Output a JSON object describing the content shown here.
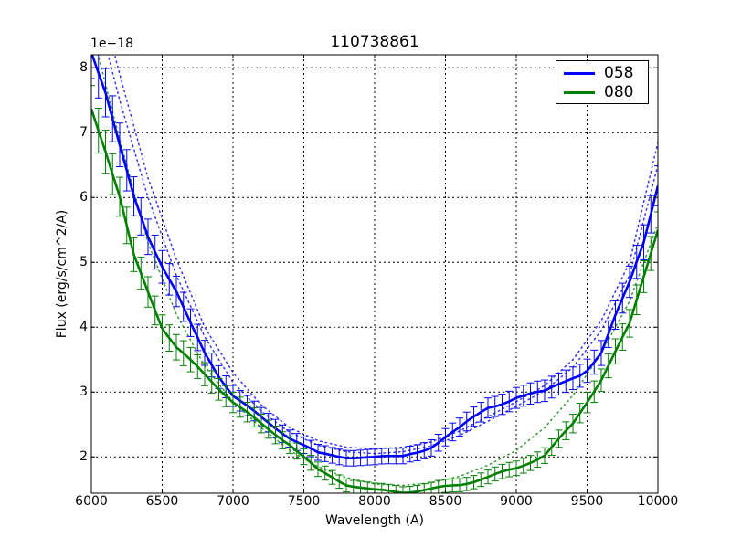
{
  "chart_data": {
    "type": "line",
    "title": "110738861",
    "xlabel": "Wavelength (A)",
    "ylabel": "Flux (erg/s/cm^2/A)",
    "y_offset_label": "1e−18",
    "xlim": [
      6000,
      10000
    ],
    "ylim": [
      1.44,
      8.2
    ],
    "xticks": [
      "6000",
      "6500",
      "7000",
      "7500",
      "8000",
      "8500",
      "9000",
      "9500",
      "10000"
    ],
    "yticks": [
      "2",
      "3",
      "4",
      "5",
      "6",
      "7",
      "8"
    ],
    "grid": true,
    "legend_position": "upper right",
    "series": [
      {
        "name": "058",
        "color": "#0000ff",
        "errorbars": true,
        "x": [
          6000,
          6100,
          6200,
          6300,
          6400,
          6500,
          6600,
          6700,
          6800,
          6900,
          7000,
          7200,
          7400,
          7600,
          7800,
          8000,
          8200,
          8400,
          8600,
          8800,
          9000,
          9200,
          9400,
          9500,
          9600,
          9700,
          9800,
          9900,
          10000
        ],
        "values": [
          8.25,
          7.63,
          6.8,
          6.0,
          5.4,
          4.95,
          4.55,
          4.05,
          3.6,
          3.25,
          2.95,
          2.6,
          2.3,
          2.05,
          2.0,
          1.98,
          2.03,
          2.17,
          2.42,
          2.77,
          2.93,
          2.98,
          3.24,
          3.34,
          3.62,
          4.18,
          4.68,
          5.31,
          6.2
        ]
      },
      {
        "name": "080",
        "color": "#008000",
        "errorbars": true,
        "x": [
          6000,
          6100,
          6200,
          6300,
          6400,
          6500,
          6600,
          6800,
          7000,
          7200,
          7400,
          7600,
          7800,
          8000,
          8200,
          8400,
          8600,
          8800,
          9000,
          9200,
          9400,
          9600,
          9800,
          10000
        ],
        "values": [
          7.38,
          6.72,
          6.0,
          5.1,
          4.55,
          4.0,
          3.69,
          3.27,
          2.85,
          2.5,
          2.2,
          1.79,
          1.58,
          1.48,
          1.46,
          1.5,
          1.57,
          1.69,
          1.82,
          2.03,
          2.5,
          3.2,
          4.04,
          5.52
        ]
      }
    ],
    "model_curves": [
      {
        "name": "058-model-upper",
        "color": "#0000ff",
        "style": "dotted",
        "x": [
          6000,
          6200,
          6400,
          6600,
          6800,
          7000,
          7200,
          7400,
          7600,
          7800,
          8000,
          8200,
          8400,
          8600,
          8800,
          9000,
          9200,
          9400,
          9600,
          9800,
          10000
        ],
        "values": [
          9.6,
          7.9,
          6.3,
          5.05,
          4.0,
          3.3,
          2.8,
          2.45,
          2.25,
          2.15,
          2.12,
          2.15,
          2.23,
          2.4,
          2.62,
          2.85,
          3.1,
          3.5,
          4.1,
          5.0,
          6.85
        ]
      },
      {
        "name": "058-model-lower",
        "color": "#0000ff",
        "style": "dotted",
        "x": [
          6000,
          6200,
          6400,
          6600,
          6800,
          7000,
          7200,
          7400,
          7600,
          7800,
          8000,
          8200,
          8400,
          8600,
          8800,
          9000,
          9200,
          9400,
          9600,
          9800,
          10000
        ],
        "values": [
          9.2,
          7.5,
          6.0,
          4.8,
          3.85,
          3.15,
          2.7,
          2.38,
          2.18,
          2.08,
          2.05,
          2.08,
          2.17,
          2.33,
          2.55,
          2.78,
          3.02,
          3.38,
          3.95,
          4.8,
          6.5
        ]
      },
      {
        "name": "080-model",
        "color": "#008000",
        "style": "dotted",
        "x": [
          6000,
          6200,
          6400,
          6600,
          6800,
          7000,
          7200,
          7400,
          7600,
          7800,
          8000,
          8200,
          8400,
          8600,
          8800,
          9000,
          9200,
          9400,
          9600,
          9800,
          10000
        ],
        "values": [
          8.6,
          6.9,
          5.3,
          4.2,
          3.4,
          2.85,
          2.45,
          2.1,
          1.85,
          1.68,
          1.58,
          1.56,
          1.6,
          1.7,
          1.87,
          2.1,
          2.45,
          2.95,
          3.6,
          4.4,
          5.6
        ]
      }
    ]
  }
}
